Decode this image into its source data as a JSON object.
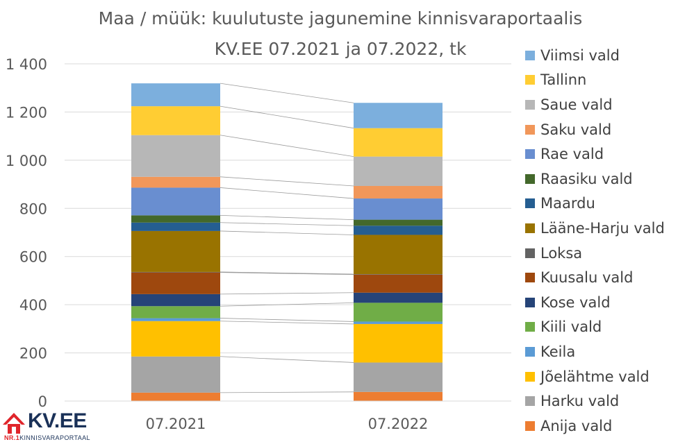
{
  "chart_data": {
    "type": "bar",
    "stacked": true,
    "title_line1": "Maa / müük: kuulutuste jagunemine kinnisvaraportaalis",
    "title_line2": "KV.EE 07.2021 ja 07.2022, tk",
    "categories": [
      "07.2021",
      "07.2022"
    ],
    "ylim": [
      0,
      1400
    ],
    "yticks": [
      "0",
      "200",
      "400",
      "600",
      "800",
      "1 000",
      "1 200",
      "1 400"
    ],
    "ytick_values": [
      0,
      200,
      400,
      600,
      800,
      1000,
      1200,
      1400
    ],
    "grid": true,
    "legend_position": "right",
    "series": [
      {
        "name": "Anija vald",
        "color": "#ED7D31",
        "values": [
          35,
          38
        ]
      },
      {
        "name": "Harku vald",
        "color": "#A5A5A5",
        "values": [
          150,
          122
        ]
      },
      {
        "name": "Jõelähtme vald",
        "color": "#FFC000",
        "values": [
          147,
          160
        ]
      },
      {
        "name": "Keila",
        "color": "#5B9BD5",
        "values": [
          12,
          10
        ]
      },
      {
        "name": "Kiili vald",
        "color": "#70AD47",
        "values": [
          50,
          78
        ]
      },
      {
        "name": "Kose vald",
        "color": "#264478",
        "values": [
          50,
          42
        ]
      },
      {
        "name": "Kuusalu vald",
        "color": "#9E480E",
        "values": [
          90,
          75
        ]
      },
      {
        "name": "Loksa",
        "color": "#636363",
        "values": [
          2,
          2
        ]
      },
      {
        "name": "Lääne-Harju vald",
        "color": "#997300",
        "values": [
          170,
          163
        ]
      },
      {
        "name": "Maardu",
        "color": "#255E91",
        "values": [
          35,
          38
        ]
      },
      {
        "name": "Raasiku vald",
        "color": "#43682B",
        "values": [
          30,
          25
        ]
      },
      {
        "name": "Rae vald",
        "color": "#698ED0",
        "values": [
          115,
          88
        ]
      },
      {
        "name": "Saku vald",
        "color": "#F1975A",
        "values": [
          45,
          52
        ]
      },
      {
        "name": "Saue vald",
        "color": "#B7B7B7",
        "values": [
          173,
          122
        ]
      },
      {
        "name": "Tallinn",
        "color": "#FFCD33",
        "values": [
          120,
          118
        ]
      },
      {
        "name": "Viimsi vald",
        "color": "#7CAFDD",
        "values": [
          95,
          105
        ]
      }
    ]
  },
  "logo": {
    "name": "KV.EE",
    "tagline_prefix": "NR.1",
    "tagline": "KINNISVARAPORTAAL",
    "color": "#1a3158",
    "accent": "#e0252b"
  }
}
